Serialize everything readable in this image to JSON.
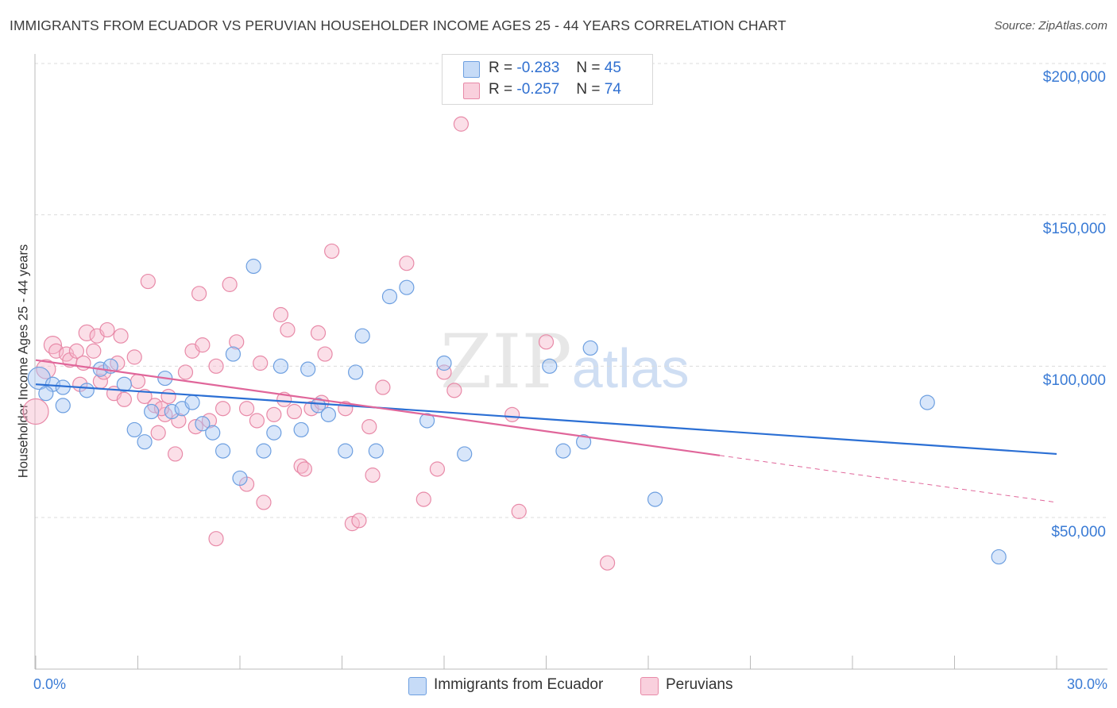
{
  "title": "IMMIGRANTS FROM ECUADOR VS PERUVIAN HOUSEHOLDER INCOME AGES 25 - 44 YEARS CORRELATION CHART",
  "source": "Source: ZipAtlas.com",
  "watermark": {
    "zip": "ZIP",
    "atlas": "atlas"
  },
  "legend": {
    "rows": [
      {
        "r_label": "R =",
        "r_value": "-0.283",
        "n_label": "N =",
        "n_value": "45",
        "color": "#a9c8f3"
      },
      {
        "r_label": "R =",
        "r_value": "-0.257",
        "n_label": "N =",
        "n_value": "74",
        "color": "#f6b8cb"
      }
    ]
  },
  "bottom_legend": [
    {
      "label": "Immigrants from Ecuador",
      "color": "#a9c8f3"
    },
    {
      "label": "Peruvians",
      "color": "#f6b8cb"
    }
  ],
  "x_ticks": {
    "left": "0.0%",
    "right": "30.0%"
  },
  "y_ticks": [
    "$200,000",
    "$150,000",
    "$100,000",
    "$50,000"
  ],
  "colors": {
    "blue_fill": "#a9c8f3",
    "blue_stroke": "#6d9fe0",
    "blue_line": "#2b6fd4",
    "pink_fill": "#f6b8cb",
    "pink_stroke": "#e88aa8",
    "pink_line": "#e0669a",
    "grid": "#dcdcdc",
    "tick_text": "#3a7bd5"
  },
  "chart_data": {
    "type": "scatter",
    "title": "IMMIGRANTS FROM ECUADOR VS PERUVIAN HOUSEHOLDER INCOME AGES 25 - 44 YEARS CORRELATION CHART",
    "xlabel": "",
    "ylabel": "Householder Income Ages 25 - 44 years",
    "xlim": [
      0,
      30
    ],
    "ylim": [
      0,
      205000
    ],
    "y_gridlines": [
      50000,
      100000,
      150000,
      200000
    ],
    "series": [
      {
        "name": "Immigrants from Ecuador",
        "r": -0.283,
        "n": 45,
        "trend": {
          "x": [
            0,
            30
          ],
          "y": [
            94000,
            71000
          ],
          "dashed_from": null
        },
        "points": [
          [
            0.1,
            96000,
            14
          ],
          [
            0.5,
            94000,
            9
          ],
          [
            0.8,
            87000,
            9
          ],
          [
            0.8,
            93000,
            9
          ],
          [
            1.5,
            92000,
            9
          ],
          [
            1.9,
            99000,
            9
          ],
          [
            2.2,
            100000,
            9
          ],
          [
            2.6,
            94000,
            9
          ],
          [
            2.9,
            79000,
            9
          ],
          [
            3.2,
            75000,
            9
          ],
          [
            3.4,
            85000,
            9
          ],
          [
            3.8,
            96000,
            9
          ],
          [
            4.0,
            85000,
            9
          ],
          [
            4.3,
            86000,
            9
          ],
          [
            4.6,
            88000,
            9
          ],
          [
            4.9,
            81000,
            9
          ],
          [
            5.2,
            78000,
            9
          ],
          [
            5.5,
            72000,
            9
          ],
          [
            5.8,
            104000,
            9
          ],
          [
            6.0,
            63000,
            9
          ],
          [
            6.4,
            133000,
            9
          ],
          [
            6.7,
            72000,
            9
          ],
          [
            7.0,
            78000,
            9
          ],
          [
            7.2,
            100000,
            9
          ],
          [
            7.8,
            79000,
            9
          ],
          [
            8.0,
            99000,
            9
          ],
          [
            8.3,
            87000,
            9
          ],
          [
            8.6,
            84000,
            9
          ],
          [
            9.1,
            72000,
            9
          ],
          [
            9.4,
            98000,
            9
          ],
          [
            9.6,
            110000,
            9
          ],
          [
            10.0,
            72000,
            9
          ],
          [
            10.4,
            123000,
            9
          ],
          [
            10.9,
            126000,
            9
          ],
          [
            11.5,
            82000,
            9
          ],
          [
            12.0,
            101000,
            9
          ],
          [
            12.6,
            71000,
            9
          ],
          [
            15.1,
            100000,
            9
          ],
          [
            15.5,
            72000,
            9
          ],
          [
            16.3,
            106000,
            9
          ],
          [
            16.1,
            75000,
            9
          ],
          [
            18.2,
            56000,
            9
          ],
          [
            26.2,
            88000,
            9
          ],
          [
            28.3,
            37000,
            9
          ],
          [
            0.3,
            91000,
            9
          ]
        ]
      },
      {
        "name": "Peruvians",
        "r": -0.257,
        "n": 74,
        "trend": {
          "x": [
            0,
            30
          ],
          "y": [
            102000,
            55000
          ],
          "dashed_from": 20.1
        },
        "points": [
          [
            0.0,
            85000,
            16
          ],
          [
            0.3,
            99000,
            12
          ],
          [
            0.5,
            107000,
            11
          ],
          [
            0.6,
            105000,
            9
          ],
          [
            0.9,
            104000,
            9
          ],
          [
            1.0,
            102000,
            9
          ],
          [
            1.2,
            105000,
            9
          ],
          [
            1.4,
            101000,
            9
          ],
          [
            1.5,
            111000,
            10
          ],
          [
            1.7,
            105000,
            9
          ],
          [
            1.8,
            110000,
            9
          ],
          [
            1.9,
            95000,
            9
          ],
          [
            2.1,
            112000,
            9
          ],
          [
            2.3,
            91000,
            9
          ],
          [
            2.4,
            101000,
            9
          ],
          [
            2.5,
            110000,
            9
          ],
          [
            2.6,
            89000,
            9
          ],
          [
            2.9,
            103000,
            9
          ],
          [
            3.0,
            95000,
            9
          ],
          [
            3.2,
            90000,
            9
          ],
          [
            3.3,
            128000,
            9
          ],
          [
            3.5,
            87000,
            9
          ],
          [
            3.6,
            78000,
            9
          ],
          [
            3.8,
            84000,
            9
          ],
          [
            3.9,
            90000,
            9
          ],
          [
            4.1,
            71000,
            9
          ],
          [
            4.2,
            82000,
            9
          ],
          [
            4.4,
            98000,
            9
          ],
          [
            4.6,
            105000,
            9
          ],
          [
            4.7,
            80000,
            9
          ],
          [
            4.8,
            124000,
            9
          ],
          [
            4.9,
            107000,
            9
          ],
          [
            5.1,
            82000,
            9
          ],
          [
            5.3,
            100000,
            9
          ],
          [
            5.5,
            86000,
            9
          ],
          [
            5.7,
            127000,
            9
          ],
          [
            5.9,
            108000,
            9
          ],
          [
            6.2,
            86000,
            9
          ],
          [
            6.2,
            61000,
            9
          ],
          [
            6.5,
            82000,
            9
          ],
          [
            6.6,
            101000,
            9
          ],
          [
            6.7,
            55000,
            9
          ],
          [
            7.0,
            84000,
            9
          ],
          [
            7.2,
            117000,
            9
          ],
          [
            7.3,
            89000,
            9
          ],
          [
            7.4,
            112000,
            9
          ],
          [
            7.6,
            85000,
            9
          ],
          [
            7.8,
            67000,
            9
          ],
          [
            7.9,
            66000,
            9
          ],
          [
            8.1,
            86000,
            9
          ],
          [
            8.3,
            111000,
            9
          ],
          [
            8.4,
            88000,
            9
          ],
          [
            8.5,
            104000,
            9
          ],
          [
            8.7,
            138000,
            9
          ],
          [
            9.1,
            86000,
            9
          ],
          [
            9.3,
            48000,
            9
          ],
          [
            9.5,
            49000,
            9
          ],
          [
            9.8,
            80000,
            9
          ],
          [
            9.9,
            64000,
            9
          ],
          [
            5.3,
            43000,
            9
          ],
          [
            10.2,
            93000,
            9
          ],
          [
            10.9,
            134000,
            9
          ],
          [
            11.4,
            56000,
            9
          ],
          [
            11.8,
            66000,
            9
          ],
          [
            12.0,
            98000,
            9
          ],
          [
            12.3,
            92000,
            9
          ],
          [
            12.5,
            180000,
            9
          ],
          [
            14.0,
            84000,
            9
          ],
          [
            14.2,
            52000,
            9
          ],
          [
            15.0,
            108000,
            9
          ],
          [
            16.8,
            35000,
            9
          ],
          [
            3.7,
            86000,
            9
          ],
          [
            2.0,
            98000,
            9
          ],
          [
            1.3,
            94000,
            9
          ]
        ]
      }
    ]
  }
}
